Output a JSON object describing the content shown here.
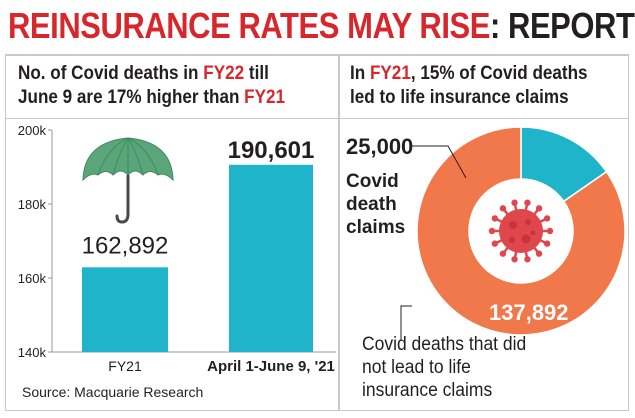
{
  "headline": {
    "main": "REINSURANCE RATES MAY RISE",
    "suffix": ": REPORT",
    "main_color": "#d7272c"
  },
  "left_panel": {
    "subhead": {
      "line1_a": "No. of Covid deaths in ",
      "line1_b": "FY22",
      "line1_c": " till",
      "line2_a": "June 9 are 17% higher than ",
      "line2_b": "FY21"
    },
    "icon": "umbrella-icon"
  },
  "right_panel": {
    "subhead": {
      "line1_a": "In ",
      "line1_b": "FY21",
      "line1_c": ", 15% of Covid deaths",
      "line2": "led to life insurance claims"
    },
    "icon": "coronavirus-icon",
    "caption": "Covid deaths that did not lead to life insurance claims"
  },
  "source": "Source: Macquarie Research",
  "colors": {
    "bar": "#1fb4c9",
    "donut_main": "#f0784a",
    "donut_small": "#1fb4c9",
    "virus": "#e0474c",
    "umbrella": "#5aa57a",
    "highlight": "#d7272c"
  },
  "chart_data": [
    {
      "type": "bar",
      "categories": [
        "FY21",
        "April 1-June 9, '21"
      ],
      "values": [
        162892,
        190601
      ],
      "value_labels": [
        "162,892",
        "190,601"
      ],
      "ylim": [
        140000,
        200000
      ],
      "yticks": [
        140000,
        160000,
        180000,
        200000
      ],
      "ytick_labels": [
        "140k",
        "160k",
        "180k",
        "200k"
      ],
      "grid": false
    },
    {
      "type": "pie",
      "donut": true,
      "labels": [
        "Covid death claims",
        "Covid deaths that did not lead to life insurance claims"
      ],
      "values": [
        25000,
        137892
      ],
      "value_labels": [
        "25,000",
        "137,892"
      ],
      "label_lines": [
        [
          "Covid",
          "death",
          "claims"
        ]
      ]
    }
  ]
}
